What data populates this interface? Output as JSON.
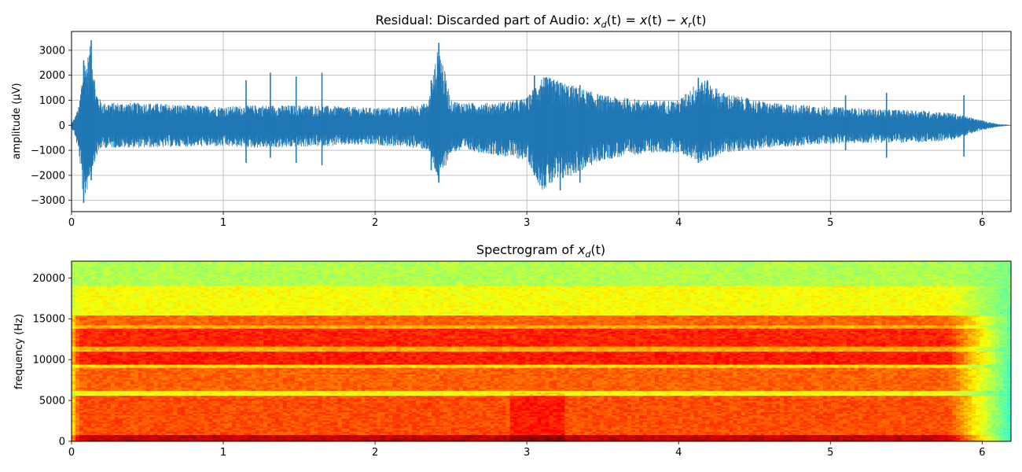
{
  "chart_data": [
    {
      "type": "line",
      "title_parts": {
        "prefix": "Residual: Discarded part of Audio: ",
        "x1": "x",
        "d1": "d",
        "p1": "(t) = ",
        "x2": "x",
        "p2": "(t) − ",
        "x3": "x",
        "r3": "r",
        "p3": "(t)"
      },
      "xlabel": "",
      "ylabel": "amplitude (µV)",
      "xlim": [
        0,
        6.19
      ],
      "ylim": [
        -3450,
        3750
      ],
      "xticks": [
        0,
        1,
        2,
        3,
        4,
        5,
        6
      ],
      "xtick_labels": [
        "0",
        "1",
        "2",
        "3",
        "4",
        "5",
        "6"
      ],
      "yticks": [
        -3000,
        -2000,
        -1000,
        0,
        1000,
        2000,
        3000
      ],
      "ytick_labels": [
        "−3000",
        "−2000",
        "−1000",
        "0",
        "1000",
        "2000",
        "3000"
      ],
      "grid": true,
      "series": [
        {
          "color": "#1f77b4",
          "envelope": {
            "t": [
              0.0,
              0.02,
              0.05,
              0.08,
              0.1,
              0.13,
              0.16,
              0.2,
              0.3,
              0.5,
              0.8,
              1.0,
              1.2,
              1.4,
              1.6,
              1.8,
              2.0,
              2.2,
              2.35,
              2.42,
              2.5,
              2.6,
              2.8,
              3.0,
              3.1,
              3.3,
              3.5,
              3.8,
              4.0,
              4.15,
              4.3,
              4.6,
              5.0,
              5.3,
              5.6,
              5.8,
              5.9,
              6.0,
              6.1,
              6.19
            ],
            "upper": [
              100,
              300,
              800,
              2600,
              2600,
              3400,
              1400,
              900,
              900,
              900,
              800,
              750,
              800,
              800,
              800,
              750,
              700,
              750,
              900,
              3300,
              1000,
              900,
              900,
              1100,
              2000,
              1600,
              1200,
              1000,
              1000,
              1900,
              1300,
              900,
              750,
              650,
              600,
              500,
              350,
              200,
              60,
              10
            ],
            "lower": [
              -100,
              -350,
              -1200,
              -3100,
              -2700,
              -1900,
              -1300,
              -900,
              -900,
              -900,
              -850,
              -850,
              -900,
              -900,
              -850,
              -800,
              -800,
              -850,
              -1000,
              -2300,
              -1100,
              -1000,
              -1200,
              -1400,
              -2600,
              -2000,
              -1400,
              -1100,
              -1100,
              -1500,
              -1100,
              -900,
              -750,
              -700,
              -700,
              -600,
              -400,
              -200,
              -60,
              -10
            ]
          },
          "spikes": [
            {
              "t": 0.08,
              "lo": -3100,
              "hi": 2600
            },
            {
              "t": 0.13,
              "lo": -2200,
              "hi": 3400
            },
            {
              "t": 1.15,
              "lo": -1500,
              "hi": 1800
            },
            {
              "t": 1.31,
              "lo": -1300,
              "hi": 2100
            },
            {
              "t": 1.48,
              "lo": -1500,
              "hi": 1950
            },
            {
              "t": 1.65,
              "lo": -1600,
              "hi": 2100
            },
            {
              "t": 2.37,
              "lo": -1800,
              "hi": 1800
            },
            {
              "t": 2.42,
              "lo": -2300,
              "hi": 3300
            },
            {
              "t": 3.05,
              "lo": -2000,
              "hi": 2000
            },
            {
              "t": 3.12,
              "lo": -2400,
              "hi": 1900
            },
            {
              "t": 3.22,
              "lo": -2600,
              "hi": 1700
            },
            {
              "t": 3.35,
              "lo": -2300,
              "hi": 1600
            },
            {
              "t": 4.13,
              "lo": -1500,
              "hi": 1900
            },
            {
              "t": 4.19,
              "lo": -1400,
              "hi": 1800
            },
            {
              "t": 5.1,
              "lo": -1000,
              "hi": 1200
            },
            {
              "t": 5.37,
              "lo": -1300,
              "hi": 1300
            },
            {
              "t": 5.88,
              "lo": -1250,
              "hi": 1200
            }
          ]
        }
      ]
    },
    {
      "type": "heatmap",
      "title_parts": {
        "prefix": "Spectrogram of ",
        "x1": "x",
        "d1": "d",
        "p1": "(t)"
      },
      "xlabel": "",
      "ylabel": "frequency (Hz)",
      "xlim": [
        0,
        6.19
      ],
      "ylim": [
        0,
        22050
      ],
      "xticks": [
        0,
        1,
        2,
        3,
        4,
        5,
        6
      ],
      "xtick_labels": [
        "0",
        "1",
        "2",
        "3",
        "4",
        "5",
        "6"
      ],
      "yticks": [
        0,
        5000,
        10000,
        15000,
        20000
      ],
      "ytick_labels": [
        "0",
        "5000",
        "10000",
        "15000",
        "20000"
      ],
      "colormap": "jet",
      "grid": false,
      "bands": [
        {
          "f_lo": 0,
          "f_hi": 900,
          "level": 0.93
        },
        {
          "f_lo": 900,
          "f_hi": 5600,
          "level": 0.8
        },
        {
          "f_lo": 5600,
          "f_hi": 6300,
          "level": 0.62
        },
        {
          "f_lo": 6300,
          "f_hi": 9000,
          "level": 0.78
        },
        {
          "f_lo": 9000,
          "f_hi": 9500,
          "level": 0.66
        },
        {
          "f_lo": 9500,
          "f_hi": 11000,
          "level": 0.85
        },
        {
          "f_lo": 11000,
          "f_hi": 11600,
          "level": 0.7
        },
        {
          "f_lo": 11600,
          "f_hi": 13800,
          "level": 0.84
        },
        {
          "f_lo": 13800,
          "f_hi": 14300,
          "level": 0.7
        },
        {
          "f_lo": 14300,
          "f_hi": 15500,
          "level": 0.78
        },
        {
          "f_lo": 15500,
          "f_hi": 19000,
          "level": 0.62
        },
        {
          "f_lo": 19000,
          "f_hi": 22050,
          "level": 0.55
        }
      ],
      "active_time": [
        0.05,
        5.78
      ],
      "fade_end": 6.19
    }
  ]
}
